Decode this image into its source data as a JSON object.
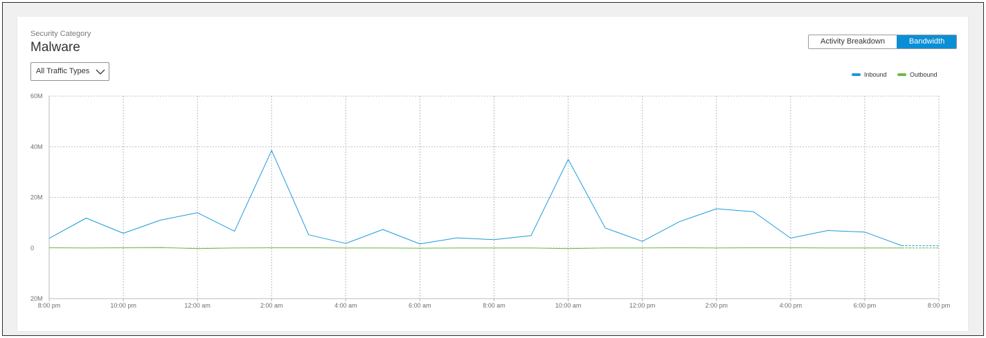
{
  "header": {
    "subtitle": "Security Category",
    "title": "Malware"
  },
  "toggle": {
    "activity_label": "Activity Breakdown",
    "bandwidth_label": "Bandwidth",
    "selected": "Bandwidth"
  },
  "filter": {
    "selected": "All Traffic Types"
  },
  "colors": {
    "inbound": "#1a9ad9",
    "outbound": "#6dbb47",
    "grid": "#a8a8a8",
    "accent": "#0a8fd6"
  },
  "chart_data": {
    "type": "line",
    "xlabel": "",
    "ylabel": "",
    "ylim": [
      -20,
      60
    ],
    "y_ticks": [
      {
        "value": 60,
        "label": "60M"
      },
      {
        "value": 40,
        "label": "40M"
      },
      {
        "value": 20,
        "label": "20M"
      },
      {
        "value": 0,
        "label": "0"
      },
      {
        "value": -20,
        "label": "20M"
      }
    ],
    "x_hours": [
      0,
      24
    ],
    "x_ticks": [
      {
        "hour": 0,
        "label": "8:00 pm"
      },
      {
        "hour": 2,
        "label": "10:00 pm"
      },
      {
        "hour": 4,
        "label": "12:00 am"
      },
      {
        "hour": 6,
        "label": "2:00 am"
      },
      {
        "hour": 8,
        "label": "4:00 am"
      },
      {
        "hour": 10,
        "label": "6:00 am"
      },
      {
        "hour": 12,
        "label": "8:00 am"
      },
      {
        "hour": 14,
        "label": "10:00 am"
      },
      {
        "hour": 16,
        "label": "12:00 pm"
      },
      {
        "hour": 18,
        "label": "2:00 pm"
      },
      {
        "hour": 20,
        "label": "4:00 pm"
      },
      {
        "hour": 22,
        "label": "6:00 pm"
      },
      {
        "hour": 24,
        "label": "8:00 pm"
      }
    ],
    "grid": true,
    "legend_position": "top-right",
    "series": [
      {
        "name": "Inbound",
        "hours": [
          0,
          1,
          2,
          3,
          4,
          5,
          6,
          7,
          8,
          9,
          10,
          11,
          12,
          13,
          14,
          15,
          16,
          17,
          18,
          19,
          20,
          21,
          22,
          23
        ],
        "values": [
          3.8,
          11.8,
          5.8,
          11.0,
          13.9,
          6.6,
          38.5,
          5.2,
          1.8,
          7.3,
          1.6,
          4.0,
          3.3,
          4.9,
          35.0,
          7.9,
          2.6,
          10.4,
          15.5,
          14.3,
          3.9,
          6.9,
          6.3,
          0.9
        ],
        "projected_hours": [
          23,
          24
        ],
        "projected_values": [
          0.9,
          0.9
        ]
      },
      {
        "name": "Outbound",
        "hours": [
          0,
          1,
          2,
          3,
          4,
          5,
          6,
          7,
          8,
          9,
          10,
          11,
          12,
          13,
          14,
          15,
          16,
          17,
          18,
          19,
          20,
          21,
          22,
          23
        ],
        "values": [
          0.1,
          0.0,
          0.1,
          0.2,
          -0.3,
          0.0,
          0.1,
          0.1,
          0.0,
          0.0,
          -0.1,
          0.0,
          0.0,
          0.0,
          -0.3,
          0.0,
          0.0,
          0.1,
          0.0,
          0.1,
          0.1,
          0.0,
          0.0,
          0.0
        ],
        "projected_hours": [
          23,
          24
        ],
        "projected_values": [
          0.0,
          0.0
        ]
      }
    ]
  }
}
